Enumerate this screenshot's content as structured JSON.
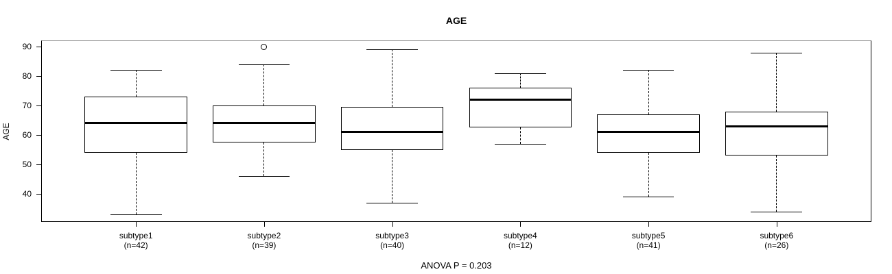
{
  "chart_data": {
    "type": "boxplot",
    "title": "AGE",
    "ylabel": "AGE",
    "xlabel": "",
    "annotation": "ANOVA P = 0.203",
    "ylim": [
      30.5,
      92.1
    ],
    "yticks": [
      40,
      50,
      60,
      70,
      80,
      90
    ],
    "grid": false,
    "line_color": "#000000",
    "background_color": "#ffffff",
    "groups": [
      {
        "label": "subtype1",
        "n_label": "(n=42)",
        "whisker_low": 33,
        "q1": 54,
        "median": 64,
        "q3": 73,
        "whisker_high": 82,
        "outliers": []
      },
      {
        "label": "subtype2",
        "n_label": "(n=39)",
        "whisker_low": 46,
        "q1": 57.5,
        "median": 64,
        "q3": 70,
        "whisker_high": 84,
        "outliers": [
          90
        ]
      },
      {
        "label": "subtype3",
        "n_label": "(n=40)",
        "whisker_low": 37,
        "q1": 55,
        "median": 61,
        "q3": 69.5,
        "whisker_high": 89,
        "outliers": []
      },
      {
        "label": "subtype4",
        "n_label": "(n=12)",
        "whisker_low": 57,
        "q1": 62.5,
        "median": 72,
        "q3": 76,
        "whisker_high": 81,
        "outliers": []
      },
      {
        "label": "subtype5",
        "n_label": "(n=41)",
        "whisker_low": 39,
        "q1": 54,
        "median": 61,
        "q3": 67,
        "whisker_high": 82,
        "outliers": []
      },
      {
        "label": "subtype6",
        "n_label": "(n=26)",
        "whisker_low": 34,
        "q1": 53,
        "median": 63,
        "q3": 68,
        "whisker_high": 88,
        "outliers": []
      }
    ]
  }
}
